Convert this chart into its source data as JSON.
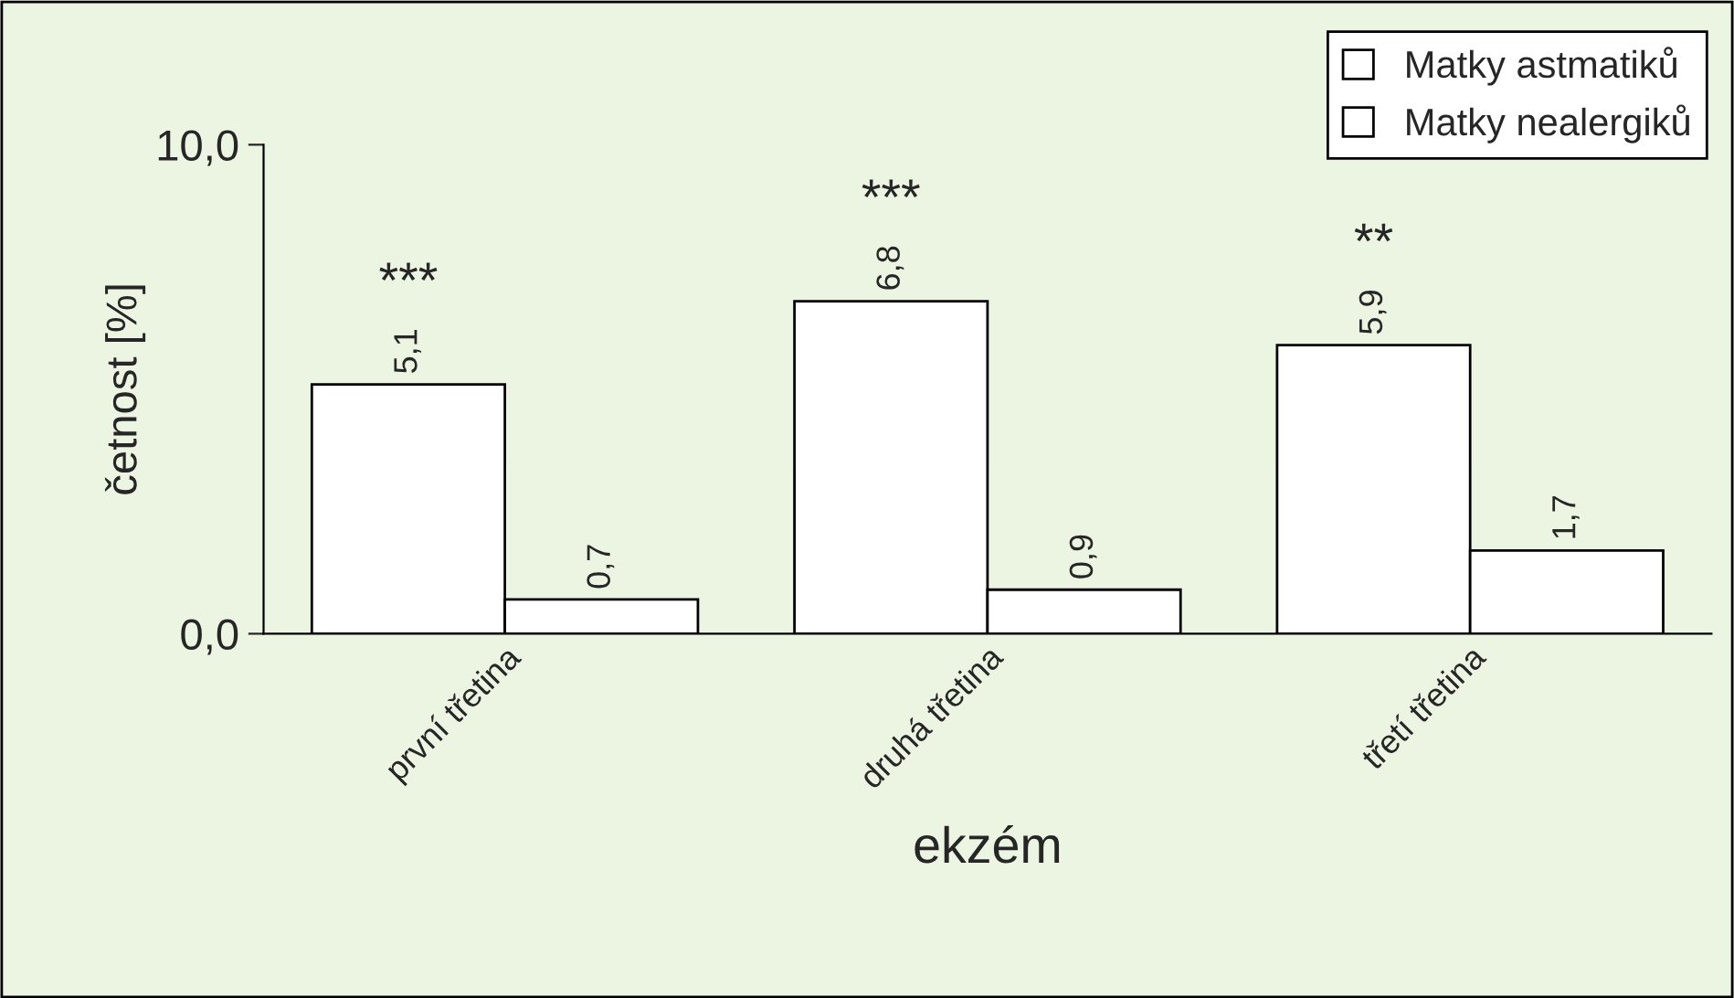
{
  "chart_data": {
    "type": "bar",
    "xlabel": "ekzém",
    "ylabel": "četnost [%]",
    "categories": [
      "první třetina",
      "druhá třetina",
      "třetí třetina"
    ],
    "series": [
      {
        "name": "Matky astmatiků",
        "color": "#ffffff",
        "values": [
          5.1,
          6.8,
          5.9
        ],
        "value_labels": [
          "5,1",
          "6,8",
          "5,9"
        ]
      },
      {
        "name": "Matky nealergiků",
        "color": "#ffffff",
        "values": [
          0.7,
          0.9,
          1.7
        ],
        "value_labels": [
          "0,7",
          "0,9",
          "1,7"
        ]
      }
    ],
    "annotations": [
      {
        "text": "***",
        "x": "první třetina",
        "y": 5.1
      },
      {
        "text": "***",
        "x": "druhá třetina",
        "y": 6.8
      },
      {
        "text": "**",
        "x": "třetí třetina",
        "y": 5.9
      }
    ],
    "ylim": [
      0,
      10
    ],
    "yticks": [
      {
        "value": 0,
        "label": "0,0"
      },
      {
        "value": 10,
        "label": "10,0"
      }
    ],
    "grid": false,
    "legend": "top right"
  }
}
